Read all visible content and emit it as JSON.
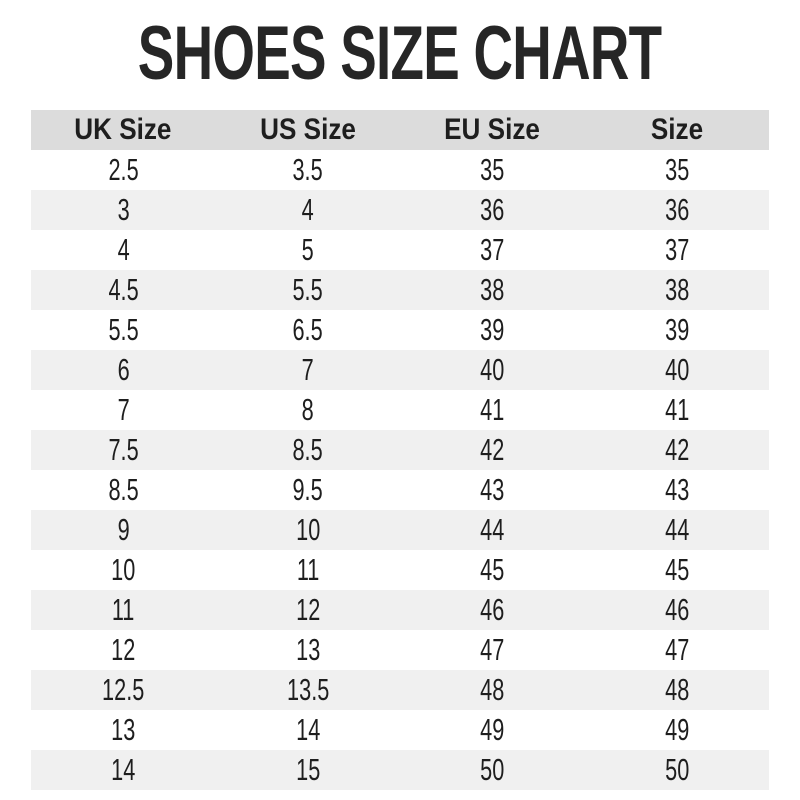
{
  "colors": {
    "header_bg": "#dcdcdc",
    "row_alt_bg": "#f0f0f0",
    "text": "#1e1e1e",
    "title_text": "#262626"
  },
  "chart_data": {
    "type": "table",
    "title": "SHOES SIZE CHART",
    "columns": [
      "UK Size",
      "US Size",
      "EU Size",
      "Size"
    ],
    "rows": [
      [
        "2.5",
        "3.5",
        "35",
        "35"
      ],
      [
        "3",
        "4",
        "36",
        "36"
      ],
      [
        "4",
        "5",
        "37",
        "37"
      ],
      [
        "4.5",
        "5.5",
        "38",
        "38"
      ],
      [
        "5.5",
        "6.5",
        "39",
        "39"
      ],
      [
        "6",
        "7",
        "40",
        "40"
      ],
      [
        "7",
        "8",
        "41",
        "41"
      ],
      [
        "7.5",
        "8.5",
        "42",
        "42"
      ],
      [
        "8.5",
        "9.5",
        "43",
        "43"
      ],
      [
        "9",
        "10",
        "44",
        "44"
      ],
      [
        "10",
        "11",
        "45",
        "45"
      ],
      [
        "11",
        "12",
        "46",
        "46"
      ],
      [
        "12",
        "13",
        "47",
        "47"
      ],
      [
        "12.5",
        "13.5",
        "48",
        "48"
      ],
      [
        "13",
        "14",
        "49",
        "49"
      ],
      [
        "14",
        "15",
        "50",
        "50"
      ]
    ],
    "layout": {
      "header_row_shaded": true,
      "alternating_rows": true,
      "first_data_row_background": "white"
    }
  }
}
